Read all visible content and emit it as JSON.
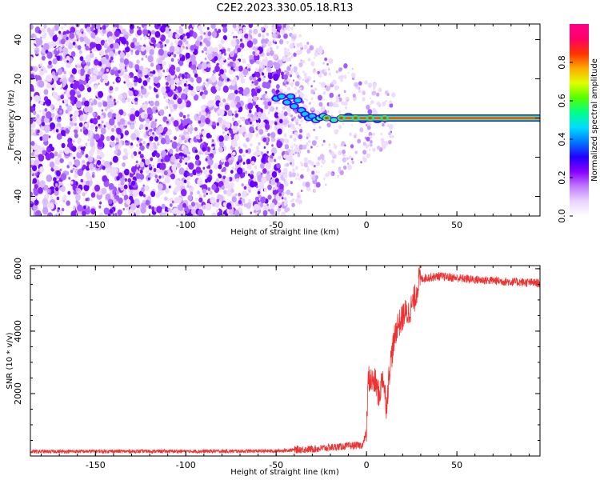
{
  "figure": {
    "title": "C2E2.2023.330.05.18.R13"
  },
  "chart_data": [
    {
      "type": "heatmap",
      "xlabel": "Height of straight line (km)",
      "ylabel": "Frequency (Hz)",
      "xlim": [
        -186,
        96
      ],
      "ylim": [
        -50,
        48
      ],
      "xticks": [
        -150,
        -100,
        -50,
        0,
        50
      ],
      "yticks": [
        -40,
        -20,
        0,
        20,
        40
      ],
      "grid": false,
      "colorbar": {
        "label": "Normalized spectral amplitude",
        "range": [
          0,
          1
        ],
        "ticks": [
          "0.0",
          "0.2",
          "0.4",
          "0.6",
          "0.8"
        ],
        "colors": [
          "#ffffff",
          "#e8d4ff",
          "#c27bff",
          "#8800ff",
          "#2200ff",
          "#0077ff",
          "#00ddff",
          "#00ff88",
          "#55ff00",
          "#ddff00",
          "#ffaa00",
          "#ff3300",
          "#ff0066",
          "#ff0088"
        ]
      },
      "carrier_line": {
        "frequency_hz": 0,
        "x_start_km": -50,
        "x_end_km": 96
      },
      "noise_region_km": [
        -186,
        -45
      ],
      "sparse_noise_region_km": [
        -45,
        15
      ]
    },
    {
      "type": "line",
      "xlabel": "Height of straight line (km)",
      "ylabel": "SNR (10 * v/v)",
      "xlim": [
        -186,
        96
      ],
      "ylim": [
        0,
        6100
      ],
      "xticks": [
        -150,
        -100,
        -50,
        0,
        50
      ],
      "yticks": [
        2000,
        4000,
        6000
      ],
      "grid": false,
      "line_color": "#ee3333",
      "series": [
        {
          "x": [
            -186,
            -150,
            -100,
            -50,
            -40,
            -30,
            -20,
            -10,
            -2,
            0,
            1,
            3,
            5,
            7,
            9,
            11,
            13,
            15,
            17,
            19,
            21,
            23,
            25,
            27,
            29,
            32,
            40,
            50,
            60,
            70,
            80,
            96
          ],
          "y": [
            140,
            150,
            150,
            160,
            200,
            220,
            270,
            320,
            350,
            800,
            2500,
            2400,
            2350,
            1900,
            2600,
            1600,
            2900,
            3600,
            4200,
            4300,
            4600,
            4550,
            4800,
            5100,
            5650,
            5700,
            5760,
            5700,
            5650,
            5620,
            5580,
            5540
          ]
        }
      ]
    }
  ]
}
